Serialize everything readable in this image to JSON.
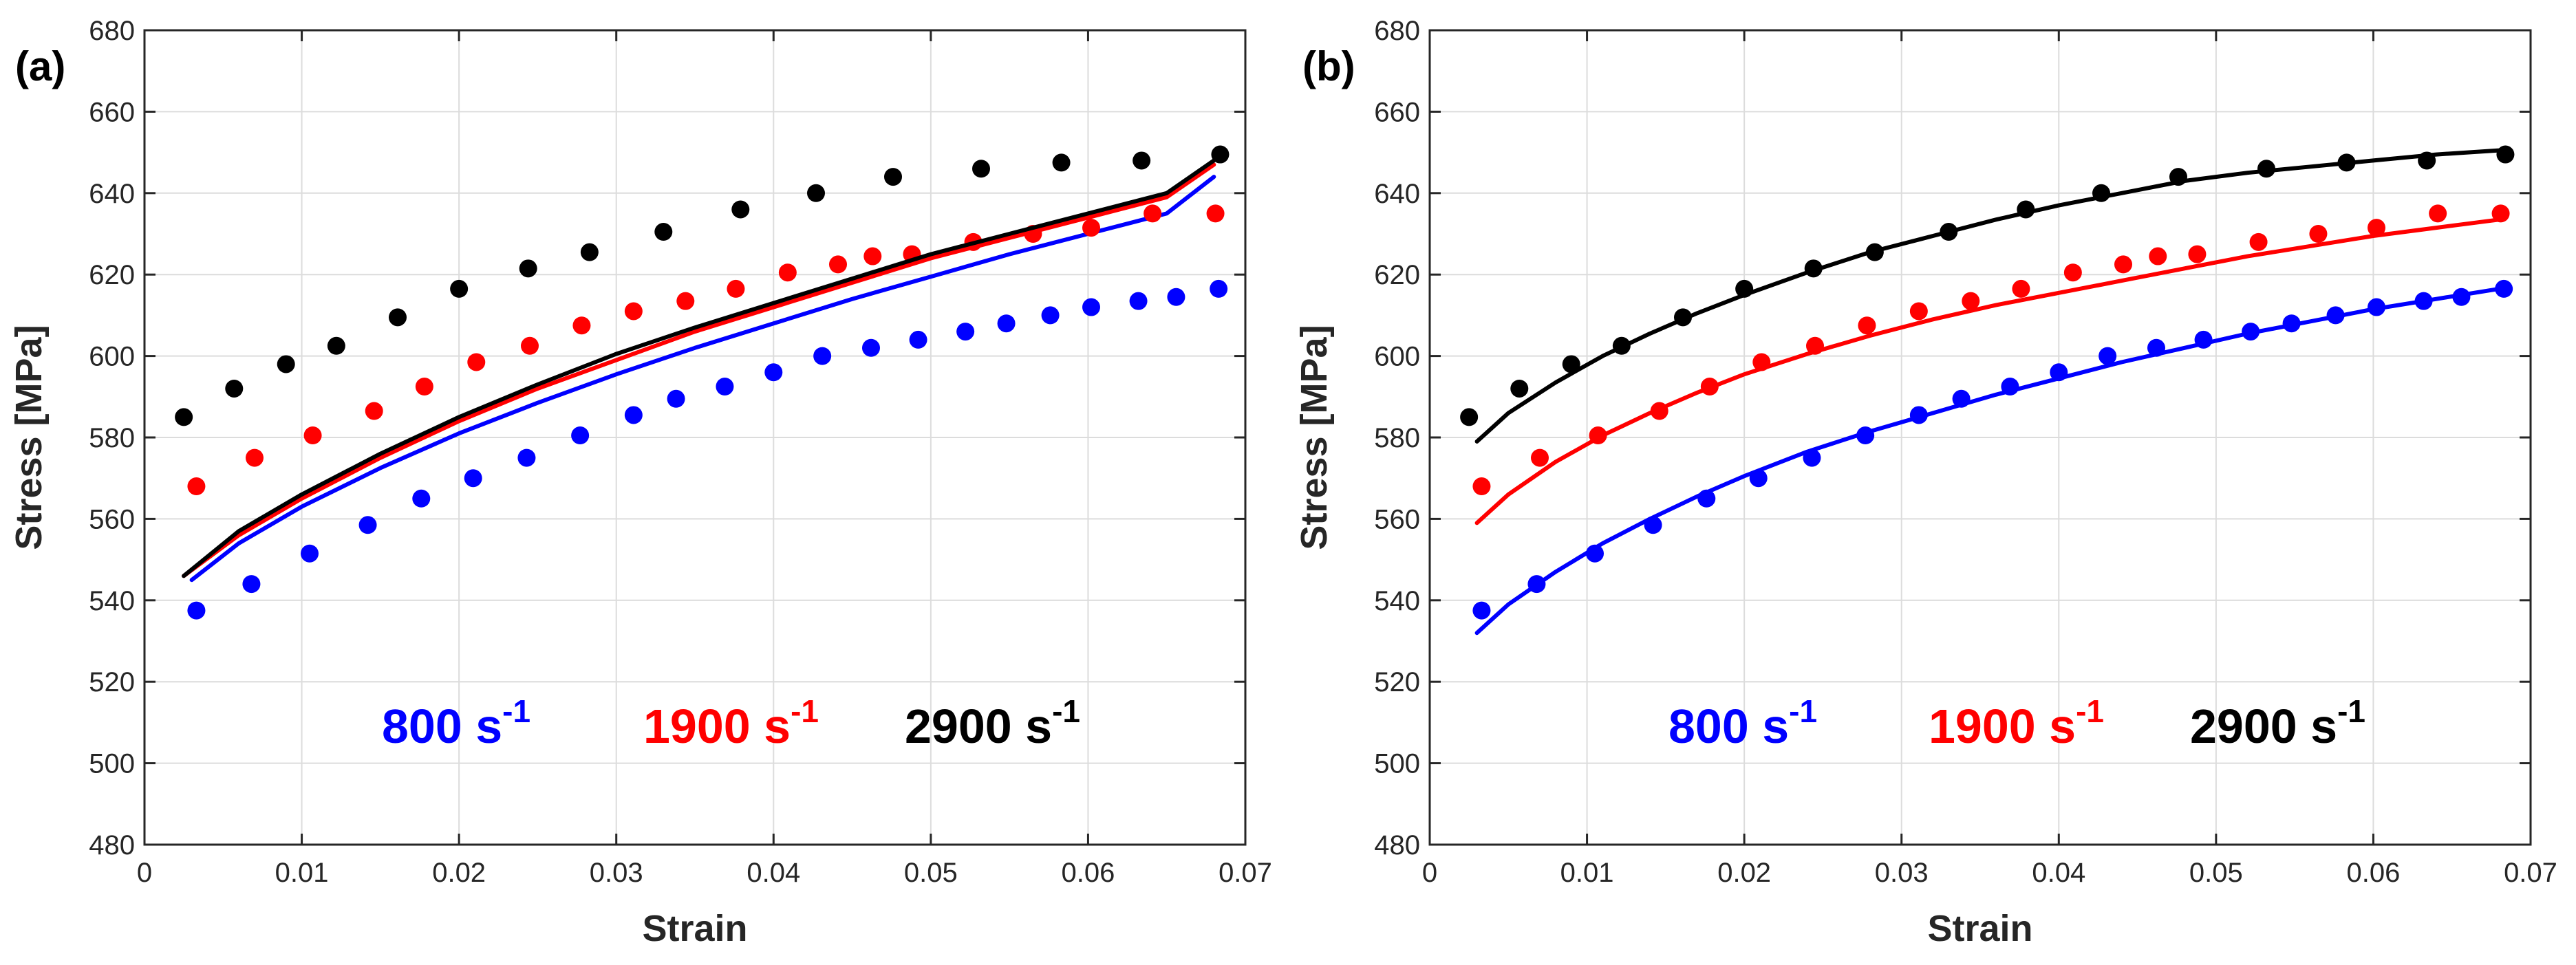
{
  "chart_data": [
    {
      "panel_label": "(a)",
      "type": "scatter",
      "xlabel": "Strain",
      "ylabel": "Stress [MPa]",
      "xlim": [
        0,
        0.07
      ],
      "ylim": [
        480,
        680
      ],
      "xticks": [
        "0",
        "0.01",
        "0.02",
        "0.03",
        "0.04",
        "0.05",
        "0.06",
        "0.07"
      ],
      "yticks": [
        "480",
        "500",
        "520",
        "540",
        "560",
        "580",
        "600",
        "620",
        "640",
        "660",
        "680"
      ],
      "grid": true,
      "legend": [
        {
          "text": "800 s",
          "sup": "-1",
          "color": "#0000ff"
        },
        {
          "text": "1900 s",
          "sup": "-1",
          "color": "#ff0000"
        },
        {
          "text": "2900 s",
          "sup": "-1",
          "color": "#000000"
        }
      ],
      "series": [
        {
          "color": "#0000ff",
          "points": {
            "x": [
              0.0033,
              0.0068,
              0.0105,
              0.0142,
              0.0176,
              0.0209,
              0.0243,
              0.0277,
              0.0311,
              0.0338,
              0.0369,
              0.04,
              0.0431,
              0.0462,
              0.0492,
              0.0522,
              0.0548,
              0.0576,
              0.0602,
              0.0632,
              0.0656,
              0.0683
            ],
            "y": [
              537.5,
              544,
              551.5,
              558.5,
              565,
              570,
              575,
              580.5,
              585.5,
              589.5,
              592.5,
              596,
              600,
              602,
              604,
              606,
              608,
              610,
              612,
              613.5,
              614.5,
              616.5
            ]
          },
          "fit": {
            "x": [
              0.003,
              0.006,
              0.01,
              0.015,
              0.02,
              0.025,
              0.03,
              0.035,
              0.04,
              0.045,
              0.05,
              0.055,
              0.06,
              0.065,
              0.068
            ],
            "y": [
              545,
              554,
              563,
              572.5,
              581,
              588.5,
              595.5,
              602,
              608,
              614,
              619.5,
              625,
              630,
              635,
              644
            ]
          }
        },
        {
          "color": "#ff0000",
          "points": {
            "x": [
              0.0033,
              0.007,
              0.0107,
              0.0146,
              0.0178,
              0.0211,
              0.0245,
              0.0278,
              0.0311,
              0.0344,
              0.0376,
              0.0409,
              0.0441,
              0.0463,
              0.0488,
              0.0527,
              0.0565,
              0.0602,
              0.0641,
              0.0681
            ],
            "y": [
              568,
              575,
              580.5,
              586.5,
              592.5,
              598.5,
              602.5,
              607.5,
              611,
              613.5,
              616.5,
              620.5,
              622.5,
              624.5,
              625,
              628,
              630,
              631.5,
              635,
              635
            ]
          },
          "fit": {
            "x": [
              0.0025,
              0.006,
              0.01,
              0.015,
              0.02,
              0.025,
              0.03,
              0.035,
              0.04,
              0.045,
              0.05,
              0.055,
              0.06,
              0.065,
              0.068
            ],
            "y": [
              546,
              556,
              565,
              575,
              584,
              592,
              599,
              606,
              612,
              618,
              624,
              629,
              634,
              639,
              647
            ]
          }
        },
        {
          "color": "#000000",
          "points": {
            "x": [
              0.0025,
              0.0057,
              0.009,
              0.0122,
              0.0161,
              0.02,
              0.0244,
              0.0283,
              0.033,
              0.0379,
              0.0427,
              0.0476,
              0.0532,
              0.0583,
              0.0634,
              0.0684
            ],
            "y": [
              585,
              592,
              598,
              602.5,
              609.5,
              616.5,
              621.5,
              625.5,
              630.5,
              636,
              640,
              644,
              646,
              647.5,
              648,
              649.5
            ]
          },
          "fit": {
            "x": [
              0.0025,
              0.006,
              0.01,
              0.015,
              0.02,
              0.025,
              0.03,
              0.035,
              0.04,
              0.045,
              0.05,
              0.055,
              0.06,
              0.065,
              0.068
            ],
            "y": [
              546,
              557,
              566,
              576,
              585,
              593,
              600.5,
              607,
              613,
              619,
              625,
              630,
              635,
              640,
              648
            ]
          }
        }
      ]
    },
    {
      "panel_label": "(b)",
      "type": "scatter",
      "xlabel": "Strain",
      "ylabel": "Stress [MPa]",
      "xlim": [
        0,
        0.07
      ],
      "ylim": [
        480,
        680
      ],
      "xticks": [
        "0",
        "0.01",
        "0.02",
        "0.03",
        "0.04",
        "0.05",
        "0.06",
        "0.07"
      ],
      "yticks": [
        "480",
        "500",
        "520",
        "540",
        "560",
        "580",
        "600",
        "620",
        "640",
        "660",
        "680"
      ],
      "grid": true,
      "legend": [
        {
          "text": "800 s",
          "sup": "-1",
          "color": "#0000ff"
        },
        {
          "text": "1900 s",
          "sup": "-1",
          "color": "#ff0000"
        },
        {
          "text": "2900 s",
          "sup": "-1",
          "color": "#000000"
        }
      ],
      "series": [
        {
          "color": "#0000ff",
          "points": {
            "x": [
              0.0033,
              0.0068,
              0.0105,
              0.0142,
              0.0176,
              0.0209,
              0.0243,
              0.0277,
              0.0311,
              0.0338,
              0.0369,
              0.04,
              0.0431,
              0.0462,
              0.0492,
              0.0522,
              0.0548,
              0.0576,
              0.0602,
              0.0632,
              0.0656,
              0.0683
            ],
            "y": [
              537.5,
              544,
              551.5,
              558.5,
              565,
              570,
              575,
              580.5,
              585.5,
              589.5,
              592.5,
              596,
              600,
              602,
              604,
              606,
              608,
              610,
              612,
              613.5,
              614.5,
              616.5
            ]
          },
          "fit": {
            "x": [
              0.003,
              0.005,
              0.008,
              0.011,
              0.014,
              0.017,
              0.02,
              0.024,
              0.028,
              0.032,
              0.036,
              0.04,
              0.044,
              0.048,
              0.052,
              0.056,
              0.06,
              0.064,
              0.068
            ],
            "y": [
              532,
              539,
              547,
              554,
              560,
              565.5,
              570.5,
              576.5,
              581.5,
              586,
              590.5,
              594.5,
              598.5,
              602,
              605.5,
              608.5,
              611.5,
              614,
              616.5
            ]
          }
        },
        {
          "color": "#ff0000",
          "points": {
            "x": [
              0.0033,
              0.007,
              0.0107,
              0.0146,
              0.0178,
              0.0211,
              0.0245,
              0.0278,
              0.0311,
              0.0344,
              0.0376,
              0.0409,
              0.0441,
              0.0463,
              0.0488,
              0.0527,
              0.0565,
              0.0602,
              0.0641,
              0.0681
            ],
            "y": [
              568,
              575,
              580.5,
              586.5,
              592.5,
              598.5,
              602.5,
              607.5,
              611,
              613.5,
              616.5,
              620.5,
              622.5,
              624.5,
              625,
              628,
              630,
              631.5,
              635,
              635
            ]
          },
          "fit": {
            "x": [
              0.003,
              0.005,
              0.008,
              0.011,
              0.014,
              0.017,
              0.02,
              0.024,
              0.028,
              0.032,
              0.036,
              0.04,
              0.044,
              0.048,
              0.052,
              0.056,
              0.06,
              0.064,
              0.068
            ],
            "y": [
              559,
              566,
              574,
              580.5,
              586,
              591,
              595.5,
              600.5,
              605,
              609,
              612.5,
              615.5,
              618.5,
              621.5,
              624.5,
              627,
              629.5,
              631.5,
              633.5
            ]
          }
        },
        {
          "color": "#000000",
          "points": {
            "x": [
              0.0025,
              0.0057,
              0.009,
              0.0122,
              0.0161,
              0.02,
              0.0244,
              0.0283,
              0.033,
              0.0379,
              0.0427,
              0.0476,
              0.0532,
              0.0583,
              0.0634,
              0.0684
            ],
            "y": [
              585,
              592,
              598,
              602.5,
              609.5,
              616.5,
              621.5,
              625.5,
              630.5,
              636,
              640,
              644,
              646,
              647.5,
              648,
              649.5
            ]
          },
          "fit": {
            "x": [
              0.003,
              0.005,
              0.008,
              0.011,
              0.014,
              0.017,
              0.02,
              0.024,
              0.028,
              0.032,
              0.036,
              0.04,
              0.044,
              0.048,
              0.052,
              0.056,
              0.06,
              0.064,
              0.068
            ],
            "y": [
              579,
              586,
              593.5,
              600,
              605.5,
              610.5,
              615,
              620.5,
              625.5,
              629.5,
              633.5,
              637,
              640,
              643,
              645,
              646.5,
              648,
              649.5,
              650.5
            ]
          }
        }
      ]
    }
  ]
}
